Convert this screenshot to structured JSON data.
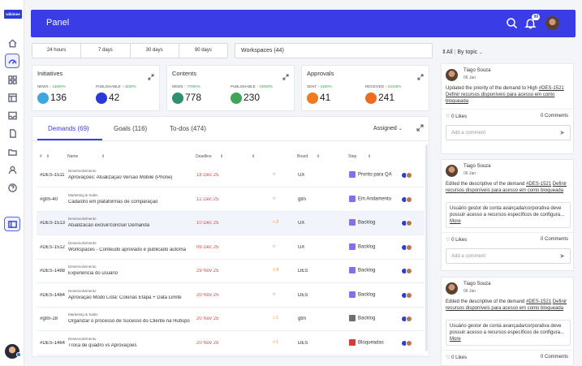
{
  "app": {
    "logo": "wikimee",
    "title": "Panel",
    "notif_count": "99"
  },
  "time_ranges": [
    "24 hours",
    "7 days",
    "30 days",
    "90 days"
  ],
  "workspace": "Workspaces (44)",
  "cards": [
    {
      "title": "Initiatives",
      "stats": [
        {
          "label": "NEWS",
          "change": "13600%",
          "value": "136",
          "color": "#3ea7e0"
        },
        {
          "label": "PUBLISHABLE",
          "change": "4200%",
          "value": "42",
          "color": "#2a3ad8"
        }
      ]
    },
    {
      "title": "Contents",
      "stats": [
        {
          "label": "NEWS",
          "change": "77800%",
          "value": "778",
          "color": "#2f8f6e"
        },
        {
          "label": "PUBLISHABLE",
          "change": "23000%",
          "value": "230",
          "color": "#3fa655"
        }
      ]
    },
    {
      "title": "Approvals",
      "stats": [
        {
          "label": "SENT",
          "change": "4100%",
          "value": "41",
          "color": "#f07a20"
        },
        {
          "label": "RECEIVED",
          "change": "24100%",
          "value": "241",
          "color": "#ef6b1f"
        }
      ]
    }
  ],
  "tabs": [
    "Demands (69)",
    "Goals (116)",
    "To-dos (474)"
  ],
  "assigned": "Assigned",
  "columns": {
    "id": "#",
    "name": "Name",
    "deadline": "Deadline",
    "board": "Board",
    "step": "Step"
  },
  "rows": [
    {
      "id": "#DES-1511",
      "cat": "Desenvolvimento",
      "title": "Aprovações: Atualização Versao Mobile (Phone)",
      "date": "18 Dec 25",
      "com": "",
      "board": "UX",
      "step": "Pronto para QA",
      "stepColor": "#8a6ee8",
      "hl": false
    },
    {
      "id": "#gtm-40",
      "cat": "Marketing & Sales",
      "title": "Cadastro em plataformas de comparação",
      "date": "12 Dec 25",
      "com": "",
      "board": "gtm",
      "step": "Em Andamento",
      "stepColor": "#8a6ee8",
      "hl": false
    },
    {
      "id": "#DES-1513",
      "cat": "Desenvolvimento",
      "title": "Atualizacao excluir/concluir Demanda",
      "date": "10 Dec 25",
      "com": "2",
      "board": "UX",
      "step": "Backlog",
      "stepColor": "#8a6ee8",
      "hl": true
    },
    {
      "id": "#DES-1512",
      "cat": "Desenvolvimento",
      "title": "Workspaces - Conteudo aprovado é publicado automa",
      "date": "09 Dec 25",
      "com": "",
      "board": "UX",
      "step": "Backlog",
      "stepColor": "#8a6ee8",
      "hl": false
    },
    {
      "id": "#DES-1488",
      "cat": "Desenvolvimento",
      "title": "Experiencia do usuário",
      "date": "29 Nov 25",
      "com": "9",
      "board": "DES",
      "step": "Backlog",
      "stepColor": "#8a6ee8",
      "hl": false
    },
    {
      "id": "#DES-1484",
      "cat": "Desenvolvimento",
      "title": "Aprovação Modo Lista: Colunas Etapa + Data Limite",
      "date": "20 Nov 25",
      "com": "",
      "board": "DES",
      "step": "Backlog",
      "stepColor": "#8a6ee8",
      "hl": false
    },
    {
      "id": "#gtm-28",
      "cat": "Marketing & Sales",
      "title": "Organizar o processo de Sucesso do Cliente na Hubspo",
      "date": "20 Nov 25",
      "com": "1",
      "board": "gtm",
      "step": "Backlog",
      "stepColor": "#707070",
      "hl": false
    },
    {
      "id": "#DES-1464",
      "cat": "Desenvolvimento",
      "title": "Troca de quadro vs Aprovações",
      "date": "20 Nov 25",
      "com": "1",
      "board": "DES",
      "step": "Bloqueadas",
      "stepColor": "#d63a3a",
      "hl": false
    }
  ],
  "feed": {
    "filter": "All",
    "by": "By topic",
    "posts": [
      {
        "name": "Tiago Souza",
        "date": "06 Jan",
        "pre": "Updated the priority of the demand to High",
        "link": "#DES-1521",
        "link2": "Definir recursos disponíveis para acesso em conto bloqueada",
        "quote": "",
        "likes": "0 Likes",
        "comments": "0 Comments",
        "placeholder": "Add a comment"
      },
      {
        "name": "Tiago Souza",
        "date": "06 Jan",
        "pre": "Edited the descriptive of the demand",
        "link": "#DES-1521",
        "link2": "Definir recursos disponíveis para acesso em conto bloqueada",
        "quote": "Usuário gestor de conta avançada/corporativa deve possuir acesso a recursos específicos de configura...",
        "more": "More",
        "likes": "0 Likes",
        "comments": "0 Comments",
        "placeholder": "Add a comment"
      },
      {
        "name": "Tiago Souza",
        "date": "06 Jan",
        "pre": "Edited the descriptive of the demand",
        "link": "#DES-1521",
        "link2": "Definir recursos disponíveis para acesso em conto bloqueada",
        "quote": "Usuário gestor de conta avançada/corporativa deve possuir acesso a recursos específicos de configura...",
        "more": "More",
        "likes": "0 Likes",
        "comments": "0 Comments"
      }
    ]
  }
}
